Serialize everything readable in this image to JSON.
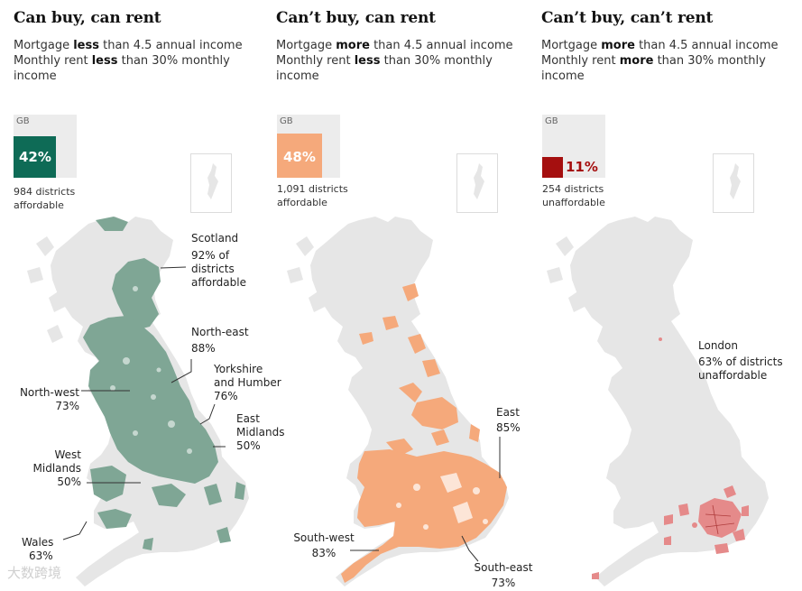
{
  "colors": {
    "land": "#e6e6e6",
    "border": "#ffffff",
    "panel1_fill": "#0e6b56",
    "panel1_map": "#7fa695",
    "panel2_fill": "#f5a97b",
    "panel3_fill": "#a50f0f",
    "panel3_map": "#e58a8a",
    "gb_box": "#ececec"
  },
  "panels": [
    {
      "title": "Can buy, can rent",
      "subtitle": [
        {
          "pre": "Mortgage ",
          "bold": "less",
          "post": " than 4.5 annual income"
        },
        {
          "pre": "Monthly rent ",
          "bold": "less",
          "post": " than 30% monthly income"
        }
      ],
      "gb_label": "GB",
      "gb_percent": "42%",
      "gb_share": 0.42,
      "gb_note": "984 districts affordable",
      "regions": [
        {
          "name": "Scotland",
          "lines": [
            "Scotland",
            "92% of",
            "districts",
            "affordable"
          ]
        },
        {
          "name": "North-east",
          "lines": [
            "North-east",
            "88%"
          ]
        },
        {
          "name": "Yorkshire and Humber",
          "lines": [
            "Yorkshire",
            "and Humber",
            "76%"
          ]
        },
        {
          "name": "North-west",
          "lines": [
            "North-west",
            "73%"
          ]
        },
        {
          "name": "East Midlands",
          "lines": [
            "East",
            "Midlands",
            "50%"
          ]
        },
        {
          "name": "West Midlands",
          "lines": [
            "West",
            "Midlands",
            "50%"
          ]
        },
        {
          "name": "Wales",
          "lines": [
            "Wales",
            "63%"
          ]
        }
      ]
    },
    {
      "title": "Can’t buy, can rent",
      "subtitle": [
        {
          "pre": "Mortgage ",
          "bold": "more",
          "post": " than 4.5 annual income"
        },
        {
          "pre": "Monthly rent ",
          "bold": "less",
          "post": " than 30% monthly income"
        }
      ],
      "gb_label": "GB",
      "gb_percent": "48%",
      "gb_share": 0.48,
      "gb_note": "1,091 districts affordable",
      "regions": [
        {
          "name": "East",
          "lines": [
            "East",
            "85%"
          ]
        },
        {
          "name": "South-west",
          "lines": [
            "South-west",
            "83%"
          ]
        },
        {
          "name": "South-east",
          "lines": [
            "South-east",
            "73%"
          ]
        }
      ]
    },
    {
      "title": "Can’t buy, can’t rent",
      "subtitle": [
        {
          "pre": "Mortgage ",
          "bold": "more",
          "post": " than 4.5 annual income"
        },
        {
          "pre": "Monthly rent ",
          "bold": "more",
          "post": " than 30% monthly income"
        }
      ],
      "gb_label": "GB",
      "gb_percent": "11%",
      "gb_share": 0.11,
      "gb_note": "254 districts unaffordable",
      "regions": [
        {
          "name": "London",
          "lines": [
            "London",
            "63% of districts",
            "unaffordable"
          ]
        }
      ]
    }
  ],
  "watermark": "大数跨境"
}
